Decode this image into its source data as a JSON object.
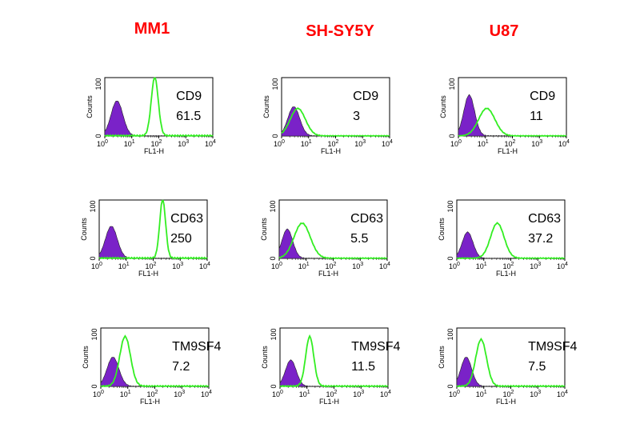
{
  "chart_data": {
    "type": "histogram-grid",
    "title": "",
    "columns": [
      "MM1",
      "SH-SY5Y",
      "U87"
    ],
    "xlabel": "FL1-H",
    "ylabel": "Counts",
    "x_scale": "log10",
    "xlim": [
      0,
      4
    ],
    "x_ticks": [
      "0",
      "1",
      "2",
      "3",
      "4"
    ],
    "x_tick_base": "10",
    "ylim": [
      0,
      100
    ],
    "y_ticks": [
      "0",
      "100"
    ],
    "series_colors": {
      "control": "#7a22c8",
      "stained": "#33ee22"
    },
    "panels": [
      {
        "cell": "MM1",
        "marker": "CD9",
        "value": "61.5",
        "control": {
          "center": 0.45,
          "width": 0.22,
          "peak": 0.6
        },
        "stained": {
          "center": 1.85,
          "width": 0.13,
          "peak": 1.0
        }
      },
      {
        "cell": "SH-SY5Y",
        "marker": "CD9",
        "value": "3",
        "control": {
          "center": 0.45,
          "width": 0.22,
          "peak": 0.5
        },
        "stained": {
          "center": 0.6,
          "width": 0.28,
          "peak": 0.47
        }
      },
      {
        "cell": "U87",
        "marker": "CD9",
        "value": "11",
        "control": {
          "center": 0.4,
          "width": 0.2,
          "peak": 0.7
        },
        "stained": {
          "center": 1.05,
          "width": 0.3,
          "peak": 0.47
        }
      },
      {
        "cell": "MM1",
        "marker": "CD63",
        "value": "250",
        "control": {
          "center": 0.45,
          "width": 0.22,
          "peak": 0.55
        },
        "stained": {
          "center": 2.35,
          "width": 0.11,
          "peak": 1.0
        }
      },
      {
        "cell": "SH-SY5Y",
        "marker": "CD63",
        "value": "5.5",
        "control": {
          "center": 0.3,
          "width": 0.2,
          "peak": 0.5
        },
        "stained": {
          "center": 0.85,
          "width": 0.3,
          "peak": 0.6
        }
      },
      {
        "cell": "U87",
        "marker": "CD63",
        "value": "37.2",
        "control": {
          "center": 0.4,
          "width": 0.2,
          "peak": 0.45
        },
        "stained": {
          "center": 1.5,
          "width": 0.25,
          "peak": 0.6
        }
      },
      {
        "cell": "MM1",
        "marker": "TM9SF4",
        "value": "7.2",
        "control": {
          "center": 0.45,
          "width": 0.22,
          "peak": 0.5
        },
        "stained": {
          "center": 0.9,
          "width": 0.2,
          "peak": 0.85
        }
      },
      {
        "cell": "SH-SY5Y",
        "marker": "TM9SF4",
        "value": "11.5",
        "control": {
          "center": 0.4,
          "width": 0.2,
          "peak": 0.45
        },
        "stained": {
          "center": 1.1,
          "width": 0.15,
          "peak": 0.85
        }
      },
      {
        "cell": "U87",
        "marker": "TM9SF4",
        "value": "7.5",
        "control": {
          "center": 0.35,
          "width": 0.2,
          "peak": 0.5
        },
        "stained": {
          "center": 0.9,
          "width": 0.2,
          "peak": 0.8
        }
      }
    ]
  }
}
